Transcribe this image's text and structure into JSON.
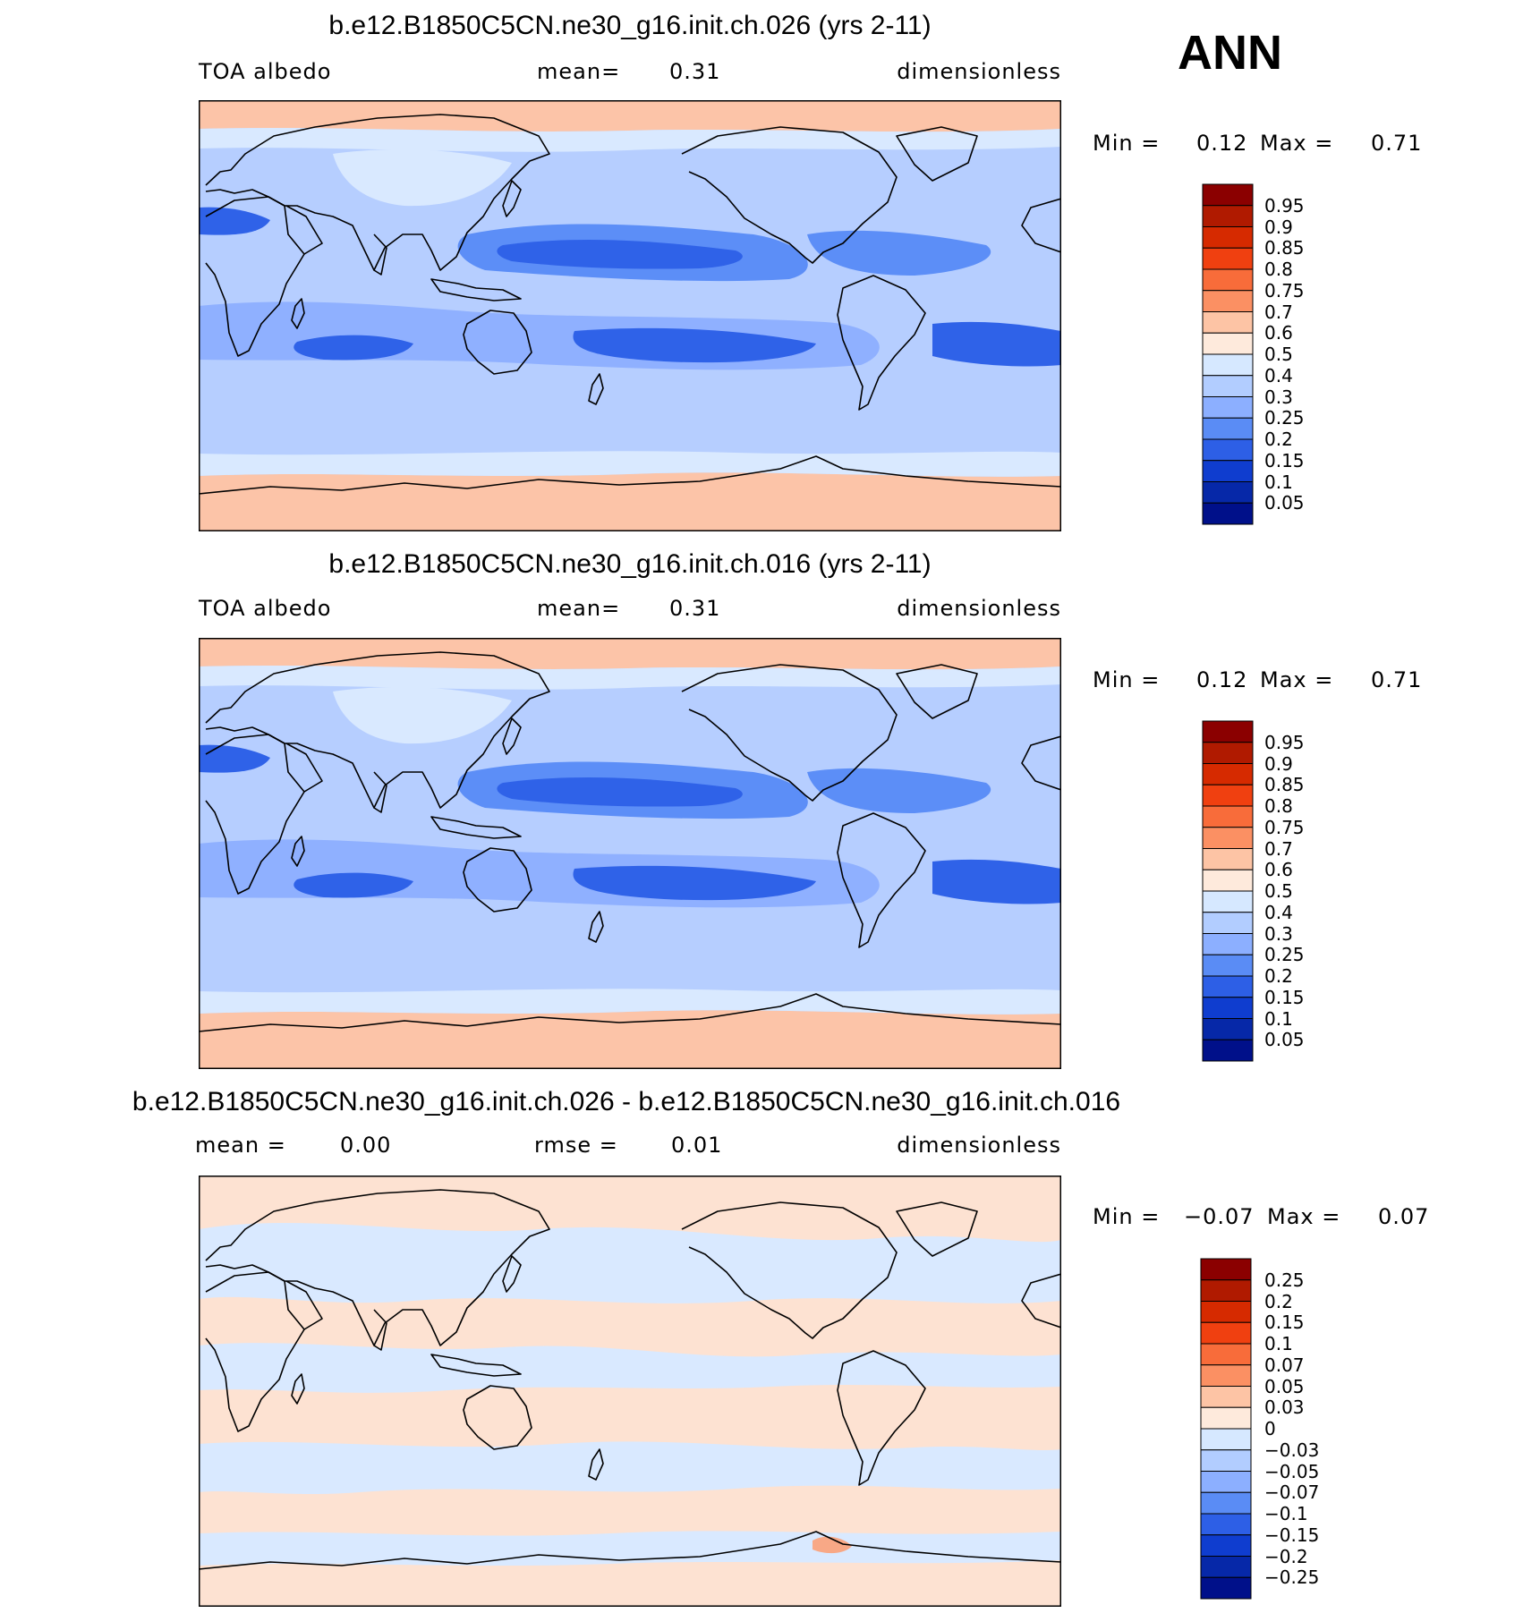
{
  "season": "ANN",
  "panels": [
    {
      "title": "b.e12.B1850C5CN.ne30_g16.init.ch.026 (yrs 2-11)",
      "left": "TOA albedo",
      "center_label": "mean=",
      "center_value": "0.31",
      "right": "dimensionless",
      "min_label": "Min =",
      "min_value": "0.12",
      "max_label": "Max =",
      "max_value": "0.71",
      "colorbar": {
        "labels": [
          "0.95",
          "0.9",
          "0.85",
          "0.8",
          "0.75",
          "0.7",
          "0.6",
          "0.5",
          "0.4",
          "0.3",
          "0.25",
          "0.2",
          "0.15",
          "0.1",
          "0.05"
        ],
        "colors": [
          "#8b0000",
          "#b01a00",
          "#d62a00",
          "#f04010",
          "#f86c3a",
          "#fb9063",
          "#fdc4a5",
          "#feeadc",
          "#d6e8ff",
          "#b2cdff",
          "#8cafff",
          "#5a8cf5",
          "#2d5fe6",
          "#0f3dcf",
          "#0628a8",
          "#00108a"
        ]
      },
      "map_kind": "mean"
    },
    {
      "title": "b.e12.B1850C5CN.ne30_g16.init.ch.016 (yrs 2-11)",
      "left": "TOA albedo",
      "center_label": "mean=",
      "center_value": "0.31",
      "right": "dimensionless",
      "min_label": "Min =",
      "min_value": "0.12",
      "max_label": "Max =",
      "max_value": "0.71",
      "colorbar": {
        "labels": [
          "0.95",
          "0.9",
          "0.85",
          "0.8",
          "0.75",
          "0.7",
          "0.6",
          "0.5",
          "0.4",
          "0.3",
          "0.25",
          "0.2",
          "0.15",
          "0.1",
          "0.05"
        ],
        "colors": [
          "#8b0000",
          "#b01a00",
          "#d62a00",
          "#f04010",
          "#f86c3a",
          "#fb9063",
          "#fdc4a5",
          "#feeadc",
          "#d6e8ff",
          "#b2cdff",
          "#8cafff",
          "#5a8cf5",
          "#2d5fe6",
          "#0f3dcf",
          "#0628a8",
          "#00108a"
        ]
      },
      "map_kind": "mean"
    },
    {
      "title": "b.e12.B1850C5CN.ne30_g16.init.ch.026 - b.e12.B1850C5CN.ne30_g16.init.ch.016",
      "left_label": "mean =",
      "left_value": "0.00",
      "center_label": "rmse =",
      "center_value": "0.01",
      "right": "dimensionless",
      "min_label": "Min =",
      "min_value": "−0.07",
      "max_label": "Max =",
      "max_value": "0.07",
      "colorbar": {
        "labels": [
          "0.25",
          "0.2",
          "0.15",
          "0.1",
          "0.07",
          "0.05",
          "0.03",
          "0",
          "−0.03",
          "−0.05",
          "−0.07",
          "−0.1",
          "−0.15",
          "−0.2",
          "−0.25"
        ],
        "colors": [
          "#8b0000",
          "#b01a00",
          "#d62a00",
          "#f04010",
          "#f86c3a",
          "#fb9063",
          "#fdc4a5",
          "#feeadc",
          "#d6e8ff",
          "#b2cdff",
          "#8cafff",
          "#5a8cf5",
          "#2d5fe6",
          "#0f3dcf",
          "#0628a8",
          "#00108a"
        ]
      },
      "map_kind": "diff"
    }
  ]
}
